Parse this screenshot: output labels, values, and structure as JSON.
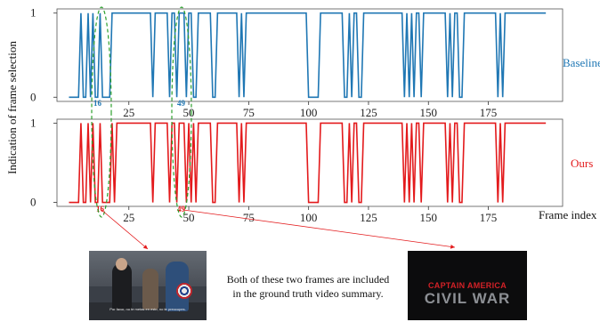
{
  "chart_data": [
    {
      "type": "line",
      "series": [
        {
          "name": "Baseline",
          "color": "#1f77b4",
          "values": [
            0,
            0,
            0,
            0,
            0,
            1,
            0,
            0,
            1,
            0,
            1,
            0,
            0,
            1,
            0,
            0,
            0,
            0,
            1,
            1,
            1,
            1,
            1,
            1,
            1,
            1,
            1,
            1,
            1,
            1,
            1,
            1,
            1,
            1,
            1,
            0,
            1,
            1,
            1,
            1,
            1,
            1,
            0,
            1,
            1,
            0,
            1,
            1,
            1,
            0,
            1,
            1,
            0,
            0,
            1,
            1,
            1,
            1,
            1,
            1,
            0,
            0,
            1,
            1,
            1,
            1,
            1,
            1,
            1,
            1,
            1,
            0,
            1,
            0,
            1,
            1,
            1,
            1,
            1,
            1,
            1,
            1,
            1,
            1,
            1,
            1,
            1,
            1,
            1,
            1,
            1,
            1,
            1,
            1,
            1,
            1,
            1,
            1,
            1,
            1,
            0,
            0,
            0,
            0,
            0,
            1,
            1,
            1,
            1,
            1,
            1,
            1,
            1,
            1,
            1,
            0,
            0,
            1,
            0,
            1,
            1,
            0,
            0,
            1,
            1,
            1,
            1,
            1,
            1,
            1,
            1,
            1,
            1,
            1,
            1,
            1,
            1,
            1,
            1,
            1,
            0,
            1,
            0,
            1,
            0,
            1,
            1,
            0,
            1,
            1,
            1,
            1,
            1,
            1,
            1,
            1,
            1,
            1,
            0,
            1,
            0,
            1,
            1,
            0,
            0,
            1,
            1,
            1,
            1,
            1,
            1,
            1,
            1,
            1,
            1,
            1,
            1,
            1,
            1,
            0,
            1,
            0,
            1,
            1,
            1,
            1,
            1,
            1,
            1,
            1,
            1,
            1,
            1,
            1,
            1,
            1,
            1,
            1,
            1,
            1
          ]
        }
      ],
      "x_ticks": [
        25,
        50,
        75,
        100,
        125,
        150,
        175
      ],
      "y_ticks": [
        0,
        1
      ],
      "xlim": [
        -5,
        206
      ],
      "ylim": [
        -0.05,
        1.05
      ],
      "callout_label": "16",
      "callout_label_2": "49",
      "legend": "right"
    },
    {
      "type": "line",
      "series": [
        {
          "name": "Ours",
          "color": "#e31a1c",
          "values": [
            0,
            0,
            0,
            0,
            0,
            1,
            0,
            0,
            1,
            0,
            1,
            0,
            0,
            1,
            0,
            0,
            0,
            0,
            1,
            0,
            1,
            1,
            1,
            1,
            1,
            1,
            1,
            1,
            1,
            1,
            1,
            1,
            1,
            1,
            1,
            0,
            1,
            1,
            1,
            1,
            1,
            1,
            0,
            1,
            1,
            0,
            1,
            1,
            1,
            0,
            1,
            0,
            1,
            0,
            1,
            1,
            1,
            1,
            1,
            1,
            0,
            0,
            1,
            1,
            1,
            1,
            1,
            1,
            1,
            1,
            1,
            0,
            1,
            0,
            1,
            1,
            1,
            1,
            1,
            1,
            1,
            1,
            1,
            1,
            1,
            1,
            1,
            1,
            1,
            1,
            1,
            1,
            1,
            1,
            1,
            1,
            1,
            1,
            1,
            1,
            0,
            0,
            0,
            0,
            0,
            1,
            1,
            1,
            1,
            1,
            1,
            1,
            1,
            1,
            1,
            0,
            0,
            1,
            0,
            1,
            1,
            0,
            0,
            1,
            1,
            1,
            1,
            1,
            1,
            1,
            1,
            1,
            1,
            1,
            1,
            1,
            1,
            1,
            1,
            1,
            0,
            1,
            0,
            1,
            0,
            1,
            1,
            0,
            1,
            1,
            1,
            1,
            1,
            1,
            1,
            1,
            1,
            1,
            0,
            1,
            0,
            1,
            1,
            0,
            0,
            1,
            1,
            1,
            1,
            1,
            1,
            1,
            1,
            1,
            1,
            1,
            1,
            1,
            1,
            0,
            1,
            0,
            1,
            1,
            1,
            1,
            1,
            1,
            1,
            1,
            1,
            1,
            1,
            1,
            1,
            1,
            1,
            1,
            1,
            1
          ]
        }
      ],
      "x_ticks": [
        25,
        50,
        75,
        100,
        125,
        150,
        175
      ],
      "y_ticks": [
        0,
        1
      ],
      "xlim": [
        -5,
        206
      ],
      "ylim": [
        -0.05,
        1.05
      ],
      "xlabel": "Frame index",
      "callout_label": "16",
      "callout_label_2": "49",
      "legend": "right"
    }
  ],
  "ylabel": "Indication of frame selection",
  "caption_line1": "Both of these two frames are included",
  "caption_line2": "in the ground truth video summary.",
  "thumb_right_line1": "CAPTAIN AMERICA",
  "thumb_right_line2": "CIVIL WAR",
  "thumb_left_subtitle": "Por favor, no te metas en esto, no te preocupes.",
  "colors": {
    "callout_ellipse": "#2ca02c",
    "arrow": "#e31a1c"
  }
}
